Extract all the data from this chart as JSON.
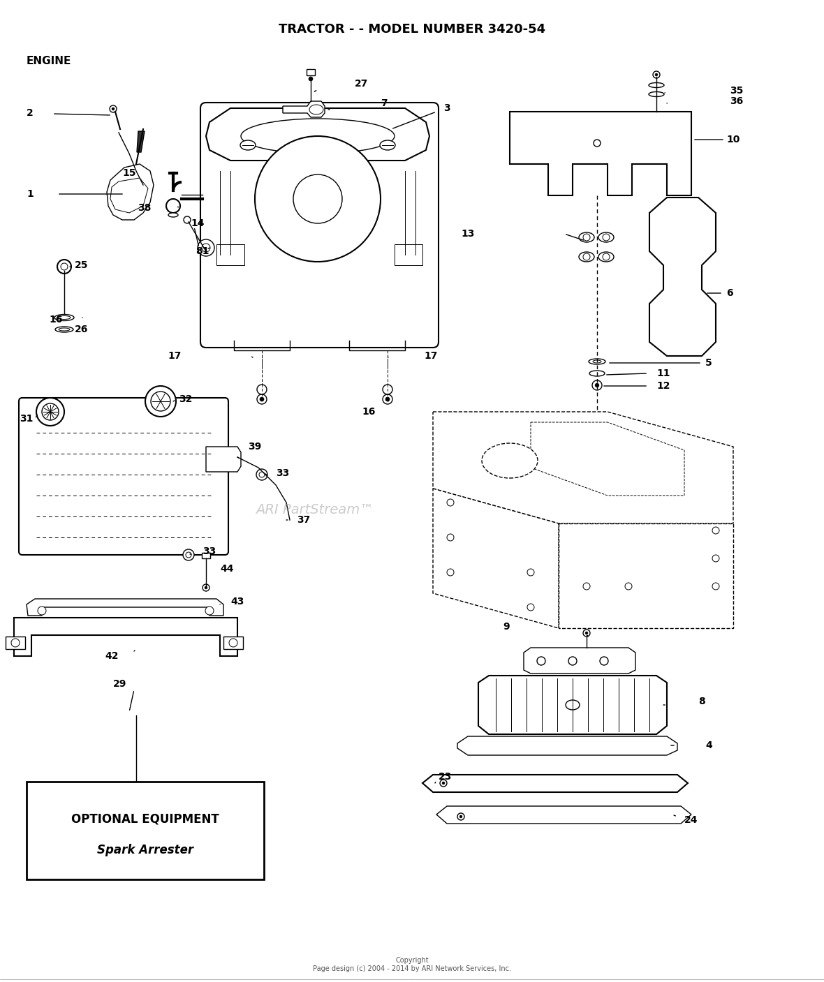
{
  "title": "TRACTOR - - MODEL NUMBER 3420-54",
  "subtitle": "ENGINE",
  "watermark": "ARI PartStream™",
  "copyright": "Copyright\nPage design (c) 2004 - 2014 by ARI Network Services, Inc.",
  "bg_color": "#ffffff",
  "fig_width": 11.8,
  "fig_height": 14.07
}
